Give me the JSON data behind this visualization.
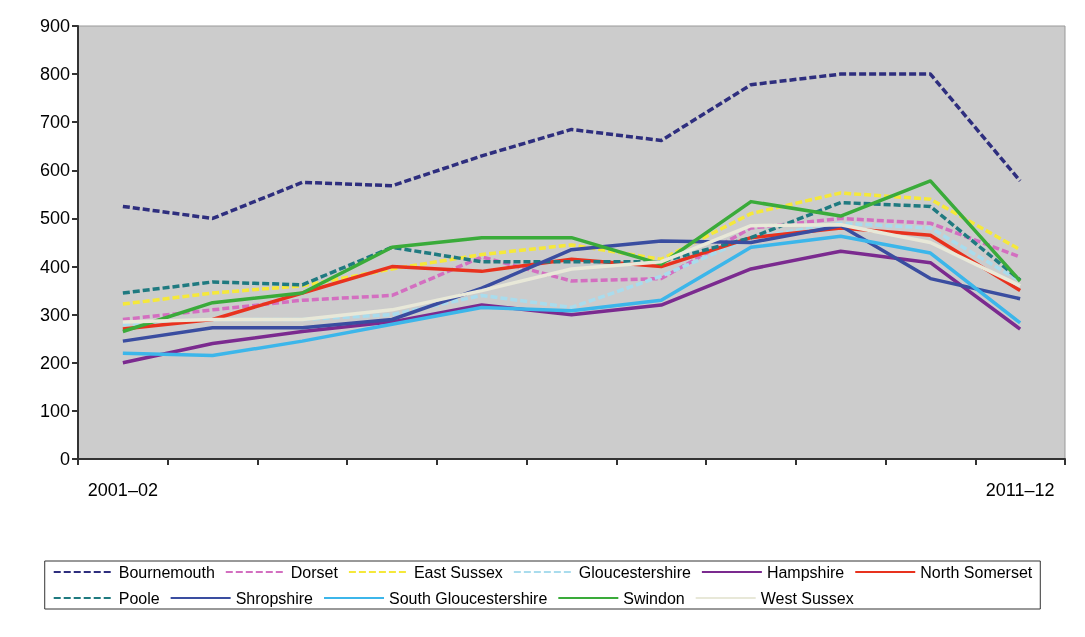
{
  "chart_data": {
    "type": "line",
    "categories": [
      "2001–02",
      null,
      null,
      null,
      null,
      null,
      null,
      null,
      null,
      null,
      "2011–12"
    ],
    "ylim": [
      0,
      900
    ],
    "yticks": [
      0,
      100,
      200,
      300,
      400,
      500,
      600,
      700,
      800,
      900
    ],
    "grid": false,
    "legend": "bottom",
    "marker": "none",
    "series": [
      {
        "name": "Bournemouth",
        "color": "#2e2e7e",
        "line_style": "dashed",
        "values": [
          525,
          500,
          575,
          568,
          630,
          685,
          662,
          778,
          800,
          800,
          578
        ]
      },
      {
        "name": "Dorset",
        "color": "#d36fc0",
        "line_style": "dashed",
        "values": [
          290,
          310,
          330,
          340,
          420,
          370,
          375,
          480,
          500,
          490,
          420
        ]
      },
      {
        "name": "East Sussex",
        "color": "#f5e83a",
        "line_style": "dashed",
        "values": [
          322,
          345,
          360,
          395,
          425,
          445,
          415,
          510,
          553,
          540,
          435
        ]
      },
      {
        "name": "Gloucestershire",
        "color": "#a9dced",
        "line_style": "dashed",
        "values": [
          280,
          290,
          290,
          300,
          340,
          315,
          380,
          460,
          490,
          480,
          370
        ]
      },
      {
        "name": "Hampshire",
        "color": "#7b2a8f",
        "line_style": "solid",
        "values": [
          200,
          240,
          265,
          285,
          320,
          300,
          320,
          395,
          432,
          408,
          270
        ]
      },
      {
        "name": "North Somerset",
        "color": "#e8321e",
        "line_style": "solid",
        "values": [
          270,
          290,
          345,
          400,
          390,
          415,
          400,
          460,
          480,
          465,
          350
        ]
      },
      {
        "name": "Poole",
        "color": "#1f7a80",
        "line_style": "dashed",
        "values": [
          345,
          368,
          362,
          440,
          410,
          410,
          410,
          460,
          533,
          525,
          372
        ]
      },
      {
        "name": "Shropshire",
        "color": "#3a4da0",
        "line_style": "solid",
        "values": [
          245,
          273,
          273,
          290,
          355,
          435,
          453,
          450,
          485,
          375,
          333
        ]
      },
      {
        "name": "South Gloucestershire",
        "color": "#3cb6ea",
        "line_style": "solid",
        "values": [
          220,
          215,
          245,
          280,
          315,
          308,
          330,
          440,
          463,
          428,
          283
        ]
      },
      {
        "name": "Swindon",
        "color": "#3aab3a",
        "line_style": "solid",
        "values": [
          265,
          325,
          345,
          440,
          460,
          460,
          405,
          535,
          505,
          578,
          370
        ]
      },
      {
        "name": "West Sussex",
        "color": "#e8e8d8",
        "line_style": "solid",
        "values": [
          285,
          290,
          290,
          310,
          350,
          395,
          410,
          485,
          487,
          450,
          360
        ]
      }
    ]
  }
}
